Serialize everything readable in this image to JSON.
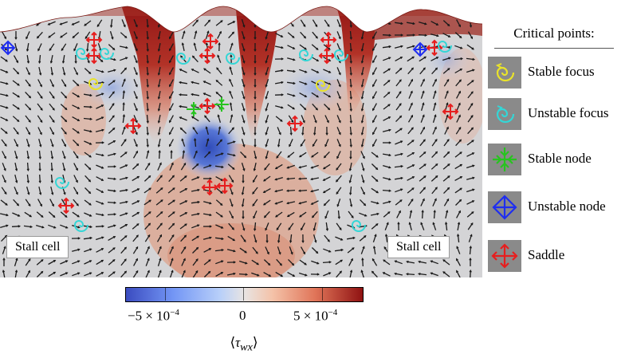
{
  "stall_cells": {
    "left": "Stall cell",
    "right": "Stall cell"
  },
  "legend": {
    "title": "Critical points:",
    "items": [
      {
        "label": "Stable focus",
        "icon": "stable-focus-icon",
        "color": "#e9e32a"
      },
      {
        "label": "Unstable focus",
        "icon": "unstable-focus-icon",
        "color": "#34d6d6"
      },
      {
        "label": "Stable node",
        "icon": "stable-node-icon",
        "color": "#27c41f"
      },
      {
        "label": "Unstable node",
        "icon": "unstable-node-icon",
        "color": "#1f2ef0"
      },
      {
        "label": "Saddle",
        "icon": "saddle-icon",
        "color": "#e61e1e"
      }
    ]
  },
  "colorbar": {
    "title_symbol": "τ",
    "title_subscript": "wx",
    "min_mantissa": "−5 × 10",
    "min_exponent": "−4",
    "mid_label": "0",
    "max_mantissa": "5 × 10",
    "max_exponent": "−4",
    "low_color": "#3b4cc0",
    "mid_color": "#e8e4e2",
    "high_color": "#8f1212"
  }
}
